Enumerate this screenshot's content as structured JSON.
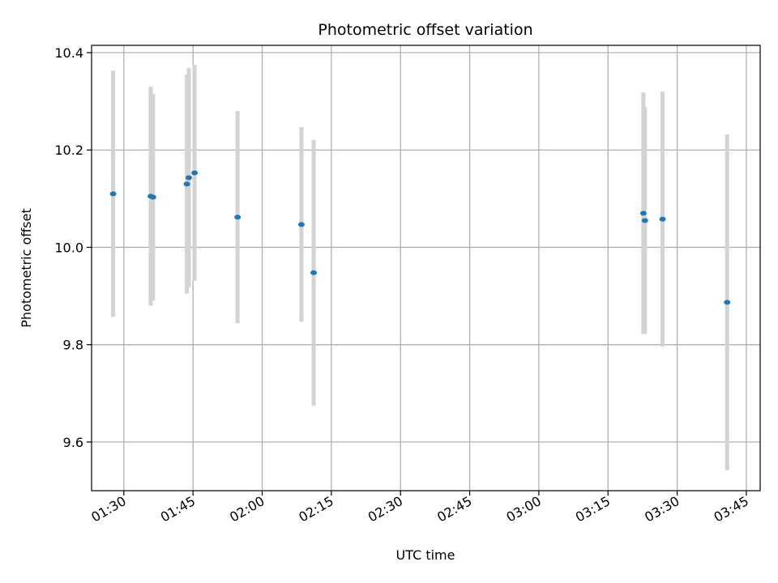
{
  "chart_data": {
    "type": "scatter",
    "title": "Photometric offset variation",
    "xlabel": "UTC time",
    "ylabel": "Photometric offset",
    "x_ticks": [
      "01:30",
      "01:45",
      "02:00",
      "02:15",
      "02:30",
      "02:45",
      "03:00",
      "03:15",
      "03:30",
      "03:45"
    ],
    "y_ticks": [
      "9.6",
      "9.8",
      "10.0",
      "10.2",
      "10.4"
    ],
    "xlim": [
      "01:23",
      "03:48"
    ],
    "ylim": [
      9.5,
      10.415
    ],
    "grid": true,
    "colors": {
      "point": "#1f77b4",
      "errorbar": "#d3d3d3",
      "grid": "#b0b0b0"
    },
    "points": [
      {
        "x": "01:27:40",
        "y": 10.11,
        "yerr": 0.253
      },
      {
        "x": "01:35:50",
        "y": 10.105,
        "yerr": 0.225
      },
      {
        "x": "01:36:20",
        "y": 10.103,
        "yerr": 0.212
      },
      {
        "x": "01:43:40",
        "y": 10.13,
        "yerr": 0.225
      },
      {
        "x": "01:44:05",
        "y": 10.143,
        "yerr": 0.225
      },
      {
        "x": "01:45:20",
        "y": 10.153,
        "yerr": 0.222
      },
      {
        "x": "01:54:40",
        "y": 10.062,
        "yerr": 0.218
      },
      {
        "x": "02:08:30",
        "y": 10.047,
        "yerr": 0.2
      },
      {
        "x": "02:11:10",
        "y": 9.948,
        "yerr": 0.273
      },
      {
        "x": "03:22:40",
        "y": 10.07,
        "yerr": 0.248
      },
      {
        "x": "03:23:00",
        "y": 10.055,
        "yerr": 0.233
      },
      {
        "x": "03:26:50",
        "y": 10.058,
        "yerr": 0.262
      },
      {
        "x": "03:40:50",
        "y": 9.887,
        "yerr": 0.345
      }
    ]
  }
}
